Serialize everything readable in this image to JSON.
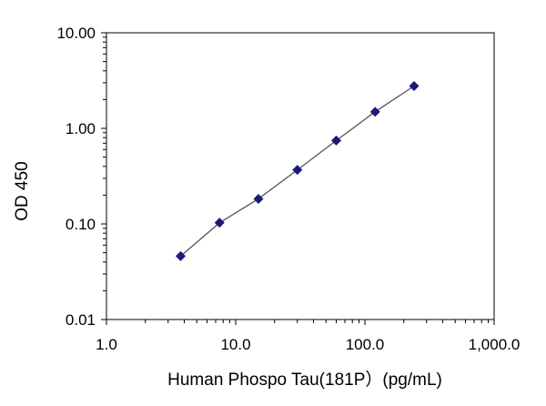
{
  "chart_data": {
    "type": "scatter",
    "xlabel": "Human  Phospo Tau(181P）(pg/mL)",
    "ylabel": "OD 450",
    "x_scale": "log",
    "y_scale": "log",
    "xlim": [
      1,
      1000
    ],
    "ylim": [
      0.01,
      10
    ],
    "x_ticks": [
      {
        "value": 1,
        "label": "1.0"
      },
      {
        "value": 10,
        "label": "10.0"
      },
      {
        "value": 100,
        "label": "100.0"
      },
      {
        "value": 1000,
        "label": "1,000.0"
      }
    ],
    "y_ticks": [
      {
        "value": 0.01,
        "label": "0.01"
      },
      {
        "value": 0.1,
        "label": "0.10"
      },
      {
        "value": 1,
        "label": "1.00"
      },
      {
        "value": 10,
        "label": "10.00"
      }
    ],
    "grid": false,
    "legend": "none",
    "trendline": true,
    "series": [
      {
        "marker": "diamond",
        "color": "#1a1a7a",
        "points": [
          {
            "x": 3.75,
            "y": 0.046
          },
          {
            "x": 7.5,
            "y": 0.103
          },
          {
            "x": 15,
            "y": 0.183
          },
          {
            "x": 30,
            "y": 0.368
          },
          {
            "x": 60,
            "y": 0.745
          },
          {
            "x": 120,
            "y": 1.49
          },
          {
            "x": 240,
            "y": 2.77
          }
        ]
      }
    ],
    "line_color": "#555555",
    "axis_color": "#000000"
  }
}
